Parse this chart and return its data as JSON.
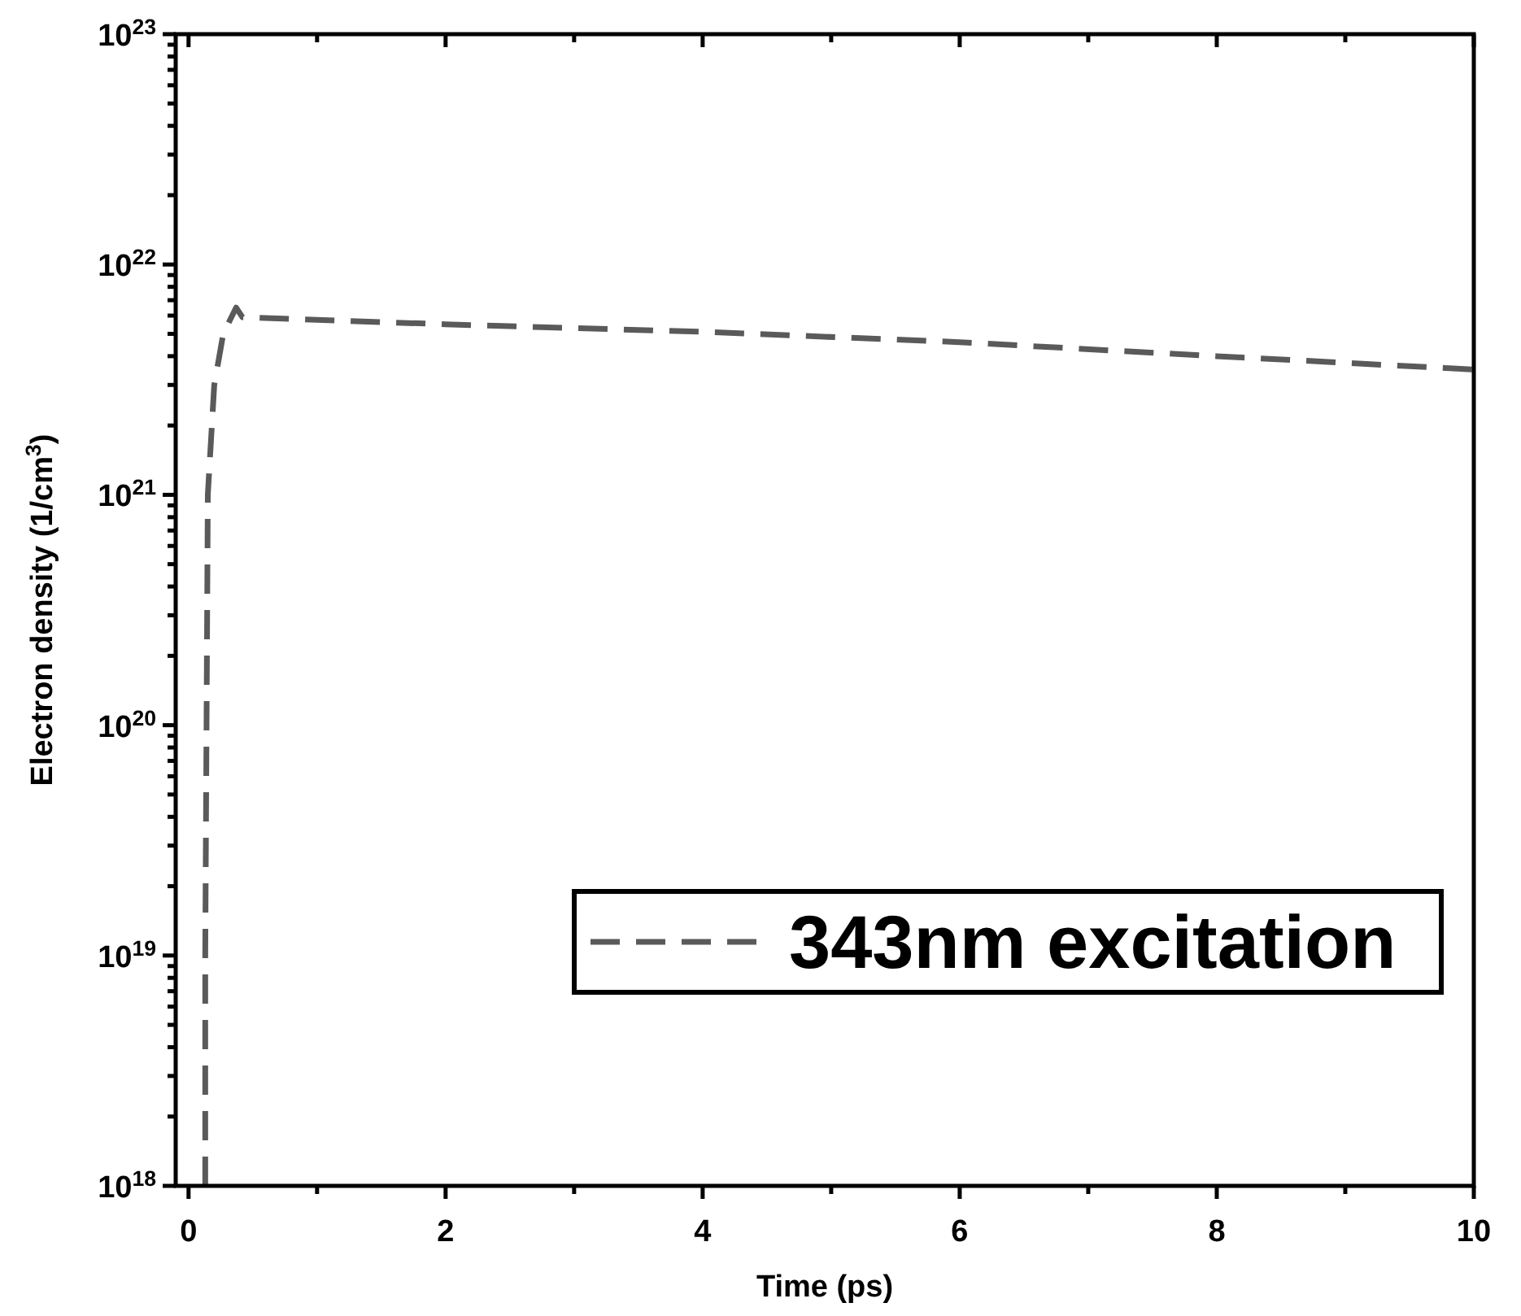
{
  "chart_data": {
    "type": "line",
    "xlabel": "Time (ps)",
    "ylabel": "Electron density (1/cm$^{3}$)",
    "log": "y",
    "legend": "bottom right",
    "line_style": "dashed",
    "marker": "none",
    "grid": false,
    "xlim": [
      -0.1,
      10
    ],
    "xticks": [
      0,
      {
        "value": 1,
        "label": null
      },
      2,
      {
        "value": 3,
        "label": null
      },
      4,
      {
        "value": 5,
        "label": null
      },
      6,
      {
        "value": 7,
        "label": null
      },
      8,
      {
        "value": 9,
        "label": null
      },
      10
    ],
    "ylim": [
      1e+18,
      1e+23
    ],
    "yticks": [
      {
        "value": 1e+18,
        "label": "10$^{18}$"
      },
      {
        "value": 2e+18,
        "label": null
      },
      {
        "value": 3e+18,
        "label": null
      },
      {
        "value": 4e+18,
        "label": null
      },
      {
        "value": 5e+18,
        "label": null
      },
      {
        "value": 6e+18,
        "label": null
      },
      {
        "value": 7e+18,
        "label": null
      },
      {
        "value": 8e+18,
        "label": null
      },
      {
        "value": 9e+18,
        "label": null
      },
      {
        "value": 1e+19,
        "label": "10$^{19}$"
      },
      {
        "value": 2e+19,
        "label": null
      },
      {
        "value": 3e+19,
        "label": null
      },
      {
        "value": 4e+19,
        "label": null
      },
      {
        "value": 5e+19,
        "label": null
      },
      {
        "value": 6e+19,
        "label": null
      },
      {
        "value": 7e+19,
        "label": null
      },
      {
        "value": 8e+19,
        "label": null
      },
      {
        "value": 9e+19,
        "label": null
      },
      {
        "value": 1e+20,
        "label": "10$^{20}$"
      },
      {
        "value": 2e+20,
        "label": null
      },
      {
        "value": 3e+20,
        "label": null
      },
      {
        "value": 4e+20,
        "label": null
      },
      {
        "value": 5e+20,
        "label": null
      },
      {
        "value": 6e+20,
        "label": null
      },
      {
        "value": 7e+20,
        "label": null
      },
      {
        "value": 8e+20,
        "label": null
      },
      {
        "value": 9e+20,
        "label": null
      },
      {
        "value": 1e+21,
        "label": "10$^{21}$"
      },
      {
        "value": 2e+21,
        "label": null
      },
      {
        "value": 3e+21,
        "label": null
      },
      {
        "value": 4e+21,
        "label": null
      },
      {
        "value": 5e+21,
        "label": null
      },
      {
        "value": 6e+21,
        "label": null
      },
      {
        "value": 7e+21,
        "label": null
      },
      {
        "value": 8e+21,
        "label": null
      },
      {
        "value": 9e+21,
        "label": null
      },
      {
        "value": 1e+22,
        "label": "10$^{22}$"
      },
      {
        "value": 2e+22,
        "label": null
      },
      {
        "value": 3e+22,
        "label": null
      },
      {
        "value": 4e+22,
        "label": null
      },
      {
        "value": 5e+22,
        "label": null
      },
      {
        "value": 6e+22,
        "label": null
      },
      {
        "value": 7e+22,
        "label": null
      },
      {
        "value": 8e+22,
        "label": null
      },
      {
        "value": 9e+22,
        "label": null
      },
      {
        "value": 1e+23,
        "label": "10$^{23}$"
      }
    ],
    "x": [
      0.13,
      0.13,
      0.14,
      0.15,
      0.2,
      0.27,
      0.37,
      0.42,
      2,
      4,
      6,
      8,
      10
    ],
    "series": [
      {
        "name": "343nm excitation",
        "color": "#5a5a5a",
        "values": [
          1e+18,
          1e+19,
          1e+20,
          1e+21,
          3e+21,
          5e+21,
          6.5e+21,
          5.9e+21,
          5.5e+21,
          5.1e+21,
          4.6e+21,
          4e+21,
          3.5e+21
        ]
      }
    ]
  }
}
